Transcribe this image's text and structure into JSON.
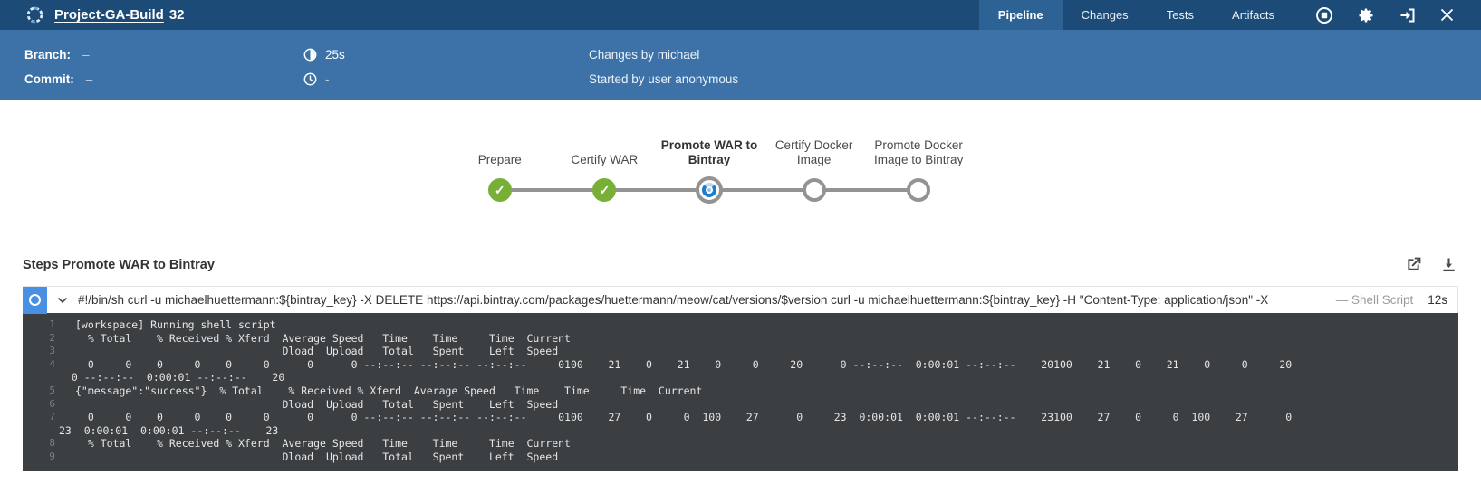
{
  "header": {
    "title_link": "Project-GA-Build",
    "build_number": "32",
    "tabs": [
      {
        "label": "Pipeline",
        "active": true
      },
      {
        "label": "Changes",
        "active": false
      },
      {
        "label": "Tests",
        "active": false
      },
      {
        "label": "Artifacts",
        "active": false
      }
    ],
    "icons": [
      "stop-icon",
      "gear-icon",
      "logout-icon",
      "close-icon"
    ]
  },
  "info_bar": {
    "branch_label": "Branch:",
    "branch_value": "–",
    "commit_label": "Commit:",
    "commit_value": "–",
    "duration": "25s",
    "end_time": "-",
    "duration_icon": "half-circle-duration-icon",
    "end_time_icon": "clock-icon",
    "changes_text": "Changes by michael",
    "started_text": "Started by user anonymous"
  },
  "pipeline": {
    "stages": [
      {
        "label": "Prepare",
        "status": "success",
        "active": false
      },
      {
        "label": "Certify WAR",
        "status": "success",
        "active": false
      },
      {
        "label": "Promote WAR to Bintray",
        "status": "running",
        "active": true
      },
      {
        "label": "Certify Docker Image",
        "status": "pending",
        "active": false
      },
      {
        "label": "Promote Docker Image to Bintray",
        "status": "pending",
        "active": false
      }
    ]
  },
  "steps": {
    "section_title": "Steps Promote WAR to Bintray",
    "action_icons": [
      "open-in-new-icon",
      "download-icon"
    ],
    "step": {
      "command": "#!/bin/sh curl -u michaelhuettermann:${bintray_key} -X DELETE https://api.bintray.com/packages/huettermann/meow/cat/versions/$version curl -u michaelhuettermann:${bintray_key} -H \"Content-Type: application/json\" -X",
      "type": "— Shell Script",
      "duration": "12s"
    },
    "console": {
      "rows": [
        {
          "num": "1",
          "text": "[workspace] Running shell script",
          "cont": false
        },
        {
          "num": "2",
          "text": "  % Total    % Received % Xferd  Average Speed   Time    Time     Time  Current",
          "cont": false
        },
        {
          "num": "3",
          "text": "                                 Dload  Upload   Total   Spent    Left  Speed",
          "cont": false
        },
        {
          "num": "4",
          "text": "  0     0    0     0    0     0      0      0 --:--:-- --:--:-- --:--:--     0100    21    0    21    0     0     20      0 --:--:--  0:00:01 --:--:--    20100    21    0    21    0     0     20",
          "cont": false
        },
        {
          "num": "",
          "text": "  0 --:--:--  0:00:01 --:--:--    20",
          "cont": true
        },
        {
          "num": "5",
          "text": "{\"message\":\"success\"}  % Total    % Received % Xferd  Average Speed   Time    Time     Time  Current",
          "cont": false
        },
        {
          "num": "6",
          "text": "                                 Dload  Upload   Total   Spent    Left  Speed",
          "cont": false
        },
        {
          "num": "7",
          "text": "  0     0    0     0    0     0      0      0 --:--:-- --:--:-- --:--:--     0100    27    0     0  100    27      0     23  0:00:01  0:00:01 --:--:--    23100    27    0     0  100    27      0",
          "cont": false
        },
        {
          "num": "",
          "text": "23  0:00:01  0:00:01 --:--:--    23",
          "cont": true
        },
        {
          "num": "8",
          "text": "  % Total    % Received % Xferd  Average Speed   Time    Time     Time  Current",
          "cont": false
        },
        {
          "num": "9",
          "text": "                                 Dload  Upload   Total   Spent    Left  Speed",
          "cont": false
        }
      ]
    }
  },
  "colors": {
    "header_bg": "#1d4b77",
    "active_tab_bg": "#2d6294",
    "infobar_bg": "#3c72a8",
    "success_green": "#78b037",
    "node_gray": "#949393",
    "running_blue": "#1d7dcf",
    "step_square_blue": "#4a90e2",
    "console_bg": "#3b3f42"
  }
}
